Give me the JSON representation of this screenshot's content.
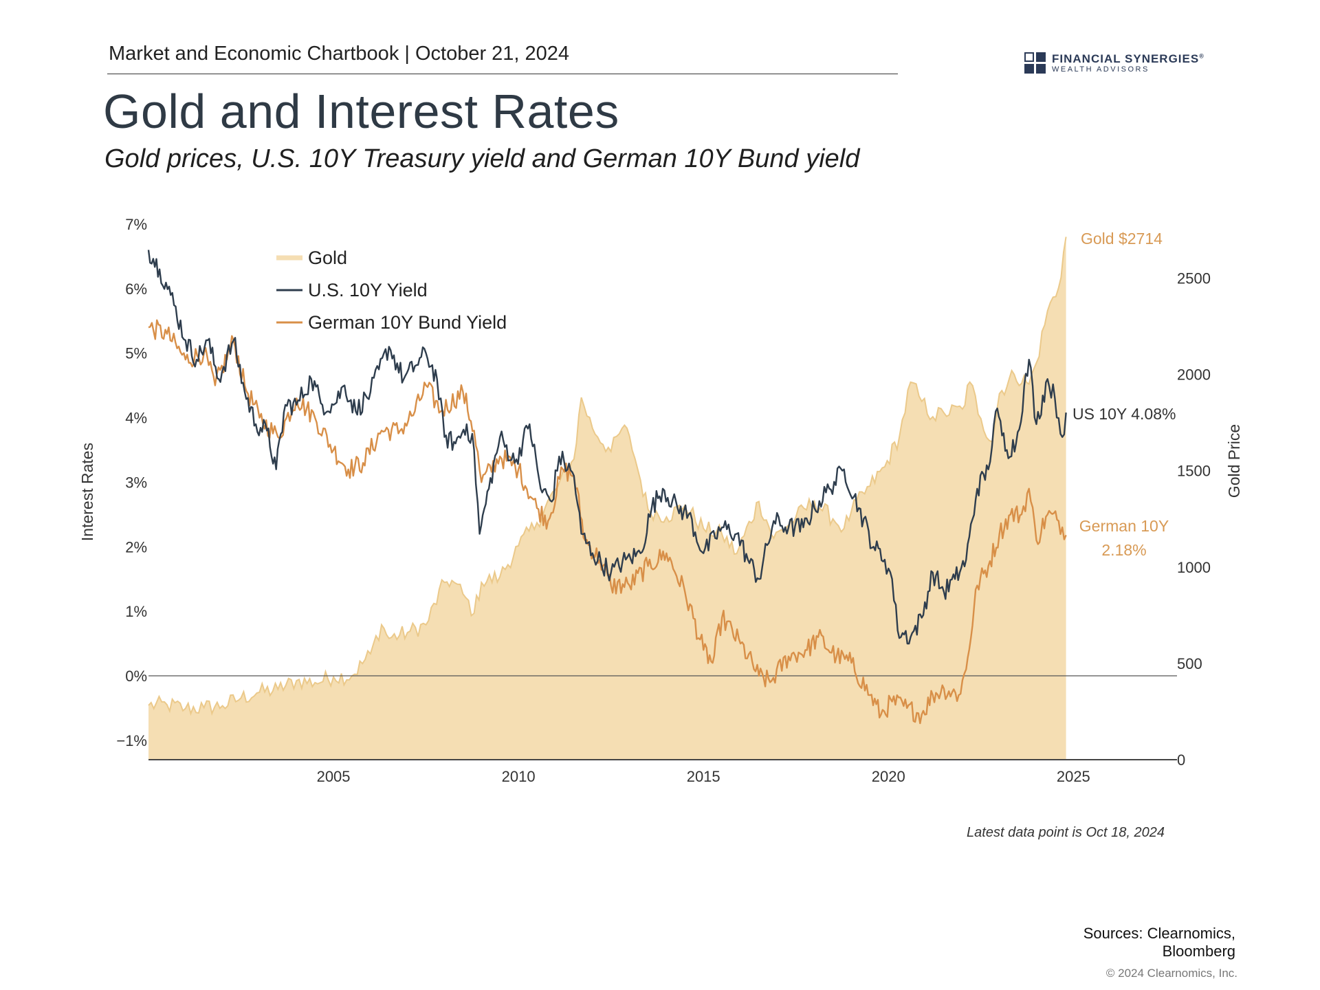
{
  "header": {
    "chartbook": "Market and Economic Chartbook | October 21, 2024",
    "title": "Gold and Interest Rates",
    "subtitle": "Gold prices, U.S. 10Y Treasury yield and German 10Y Bund yield"
  },
  "logo": {
    "name": "FINANCIAL SYNERGIES",
    "registered": "®",
    "sub": "WEALTH ADVISORS"
  },
  "footer": {
    "note": "Latest data point is Oct 18, 2024",
    "sources": "Sources: Clearnomics, Bloomberg",
    "copyright": "© 2024 Clearnomics, Inc."
  },
  "colors": {
    "gold_fill": "#f5deb3",
    "gold_line": "#ebc98a",
    "us": "#2e3d4d",
    "german": "#d88f48",
    "gold_label": "#d89a55",
    "axis": "#444444"
  },
  "chart_data": {
    "type": "line",
    "title": "Gold and Interest Rates",
    "left_axis_label": "Interest Rates",
    "right_axis_label": "Gold Price",
    "left_ylim": [
      -1.3,
      7
    ],
    "left_ticks": [
      "7%",
      "6%",
      "5%",
      "4%",
      "3%",
      "2%",
      "1%",
      "0%",
      "−1%"
    ],
    "left_tick_values": [
      7,
      6,
      5,
      4,
      3,
      2,
      1,
      0,
      -1
    ],
    "right_ylim": [
      0,
      2780
    ],
    "right_ticks": [
      "2500",
      "2000",
      "1500",
      "1000",
      "500",
      "0"
    ],
    "right_tick_values": [
      2500,
      2000,
      1500,
      1000,
      500,
      0
    ],
    "xlim": [
      2000.0,
      2027.8
    ],
    "x_ticks": [
      "2005",
      "2010",
      "2015",
      "2020",
      "2025"
    ],
    "x_tick_values": [
      2005,
      2010,
      2015,
      2020,
      2025
    ],
    "zero_line": 0,
    "legend": [
      "Gold",
      "U.S. 10Y Yield",
      "German 10Y Bund Yield"
    ],
    "end_labels": {
      "gold": "Gold $2714",
      "us": "US 10Y 4.08%",
      "german_line1": "German 10Y",
      "german_line2": "2.18%"
    },
    "series": [
      {
        "name": "Gold",
        "axis": "right",
        "style": "area",
        "x": [
          2000.0,
          2000.5,
          2001.0,
          2001.5,
          2002.0,
          2002.5,
          2003.0,
          2003.5,
          2004.0,
          2004.5,
          2005.0,
          2005.5,
          2006.0,
          2006.3,
          2006.5,
          2007.0,
          2007.5,
          2008.0,
          2008.2,
          2008.5,
          2008.8,
          2009.0,
          2009.5,
          2010.0,
          2010.5,
          2011.0,
          2011.5,
          2011.7,
          2012.0,
          2012.5,
          2012.8,
          2013.0,
          2013.3,
          2013.5,
          2014.0,
          2014.5,
          2015.0,
          2015.5,
          2015.9,
          2016.5,
          2016.9,
          2017.5,
          2018.0,
          2018.5,
          2018.8,
          2019.0,
          2019.5,
          2019.9,
          2020.3,
          2020.6,
          2020.9,
          2021.2,
          2021.5,
          2022.0,
          2022.2,
          2022.5,
          2022.8,
          2023.0,
          2023.4,
          2023.8,
          2024.0,
          2024.3,
          2024.6,
          2024.8
        ],
        "values": [
          282,
          285,
          266,
          270,
          280,
          320,
          350,
          365,
          410,
          400,
          430,
          435,
          550,
          700,
          630,
          660,
          700,
          920,
          930,
          860,
          760,
          920,
          950,
          1110,
          1230,
          1400,
          1560,
          1880,
          1720,
          1600,
          1720,
          1680,
          1450,
          1300,
          1260,
          1320,
          1200,
          1170,
          1070,
          1340,
          1150,
          1260,
          1340,
          1250,
          1200,
          1290,
          1420,
          1520,
          1680,
          1960,
          1860,
          1780,
          1800,
          1820,
          1960,
          1770,
          1650,
          1900,
          2000,
          1950,
          2060,
          2330,
          2450,
          2714
        ]
      },
      {
        "name": "U.S. 10Y Yield",
        "axis": "left",
        "x": [
          2000.0,
          2000.3,
          2000.6,
          2001.0,
          2001.3,
          2001.6,
          2001.9,
          2002.3,
          2002.6,
          2002.9,
          2003.2,
          2003.45,
          2003.7,
          2004.0,
          2004.4,
          2004.7,
          2005.0,
          2005.3,
          2005.6,
          2006.0,
          2006.5,
          2006.9,
          2007.2,
          2007.5,
          2007.8,
          2008.0,
          2008.3,
          2008.6,
          2008.8,
          2008.95,
          2009.2,
          2009.5,
          2009.9,
          2010.3,
          2010.6,
          2010.9,
          2011.1,
          2011.5,
          2011.7,
          2012.0,
          2012.5,
          2012.9,
          2013.3,
          2013.6,
          2013.9,
          2014.3,
          2014.6,
          2015.0,
          2015.5,
          2015.9,
          2016.2,
          2016.5,
          2016.9,
          2017.3,
          2017.7,
          2018.0,
          2018.4,
          2018.8,
          2019.2,
          2019.6,
          2019.9,
          2020.1,
          2020.25,
          2020.6,
          2020.9,
          2021.2,
          2021.5,
          2021.8,
          2022.1,
          2022.4,
          2022.7,
          2022.9,
          2023.2,
          2023.45,
          2023.8,
          2024.0,
          2024.3,
          2024.5,
          2024.7,
          2024.8
        ],
        "values": [
          6.6,
          6.3,
          5.9,
          5.2,
          4.9,
          5.2,
          4.6,
          5.2,
          4.4,
          3.9,
          3.8,
          3.2,
          4.2,
          4.2,
          4.6,
          4.2,
          4.2,
          4.5,
          4.1,
          4.4,
          5.1,
          4.6,
          4.8,
          5.0,
          4.6,
          3.7,
          3.6,
          3.9,
          3.5,
          2.2,
          2.9,
          3.7,
          3.3,
          3.9,
          2.9,
          2.7,
          3.4,
          3.1,
          2.2,
          1.9,
          1.6,
          1.8,
          1.9,
          2.6,
          2.9,
          2.6,
          2.5,
          1.9,
          2.3,
          2.2,
          1.8,
          1.5,
          2.4,
          2.3,
          2.3,
          2.6,
          2.9,
          3.2,
          2.6,
          2.0,
          1.8,
          1.5,
          0.7,
          0.6,
          0.9,
          1.6,
          1.3,
          1.5,
          1.8,
          2.9,
          3.2,
          4.1,
          3.5,
          3.6,
          4.9,
          3.9,
          4.6,
          4.3,
          3.7,
          4.08
        ]
      },
      {
        "name": "German 10Y Bund Yield",
        "axis": "left",
        "x": [
          2000.0,
          2000.5,
          2001.0,
          2001.5,
          2001.8,
          2002.3,
          2002.6,
          2003.0,
          2003.5,
          2004.0,
          2004.5,
          2005.0,
          2005.4,
          2005.8,
          2006.3,
          2006.8,
          2007.2,
          2007.5,
          2007.9,
          2008.5,
          2008.8,
          2009.0,
          2009.5,
          2010.0,
          2010.5,
          2010.8,
          2011.2,
          2011.5,
          2011.8,
          2012.2,
          2012.5,
          2013.0,
          2013.5,
          2014.0,
          2014.5,
          2015.0,
          2015.25,
          2015.5,
          2016.0,
          2016.5,
          2016.8,
          2017.3,
          2017.8,
          2018.1,
          2018.6,
          2019.0,
          2019.5,
          2019.8,
          2020.1,
          2020.5,
          2020.9,
          2021.2,
          2021.5,
          2021.9,
          2022.1,
          2022.4,
          2022.7,
          2023.0,
          2023.3,
          2023.6,
          2023.8,
          2024.0,
          2024.3,
          2024.6,
          2024.8
        ],
        "values": [
          5.4,
          5.3,
          4.9,
          5.0,
          4.5,
          5.2,
          4.5,
          4.0,
          3.7,
          4.3,
          4.0,
          3.5,
          3.2,
          3.3,
          3.8,
          3.8,
          4.1,
          4.5,
          4.1,
          4.4,
          3.8,
          3.0,
          3.4,
          3.2,
          2.6,
          2.4,
          3.2,
          3.1,
          2.1,
          1.8,
          1.4,
          1.4,
          1.7,
          1.9,
          1.3,
          0.4,
          0.2,
          0.9,
          0.5,
          0.0,
          -0.1,
          0.3,
          0.4,
          0.6,
          0.3,
          0.2,
          -0.3,
          -0.6,
          -0.4,
          -0.5,
          -0.6,
          -0.3,
          -0.2,
          -0.3,
          0.1,
          1.4,
          1.7,
          2.2,
          2.5,
          2.5,
          2.9,
          2.1,
          2.5,
          2.4,
          2.18
        ]
      }
    ]
  }
}
